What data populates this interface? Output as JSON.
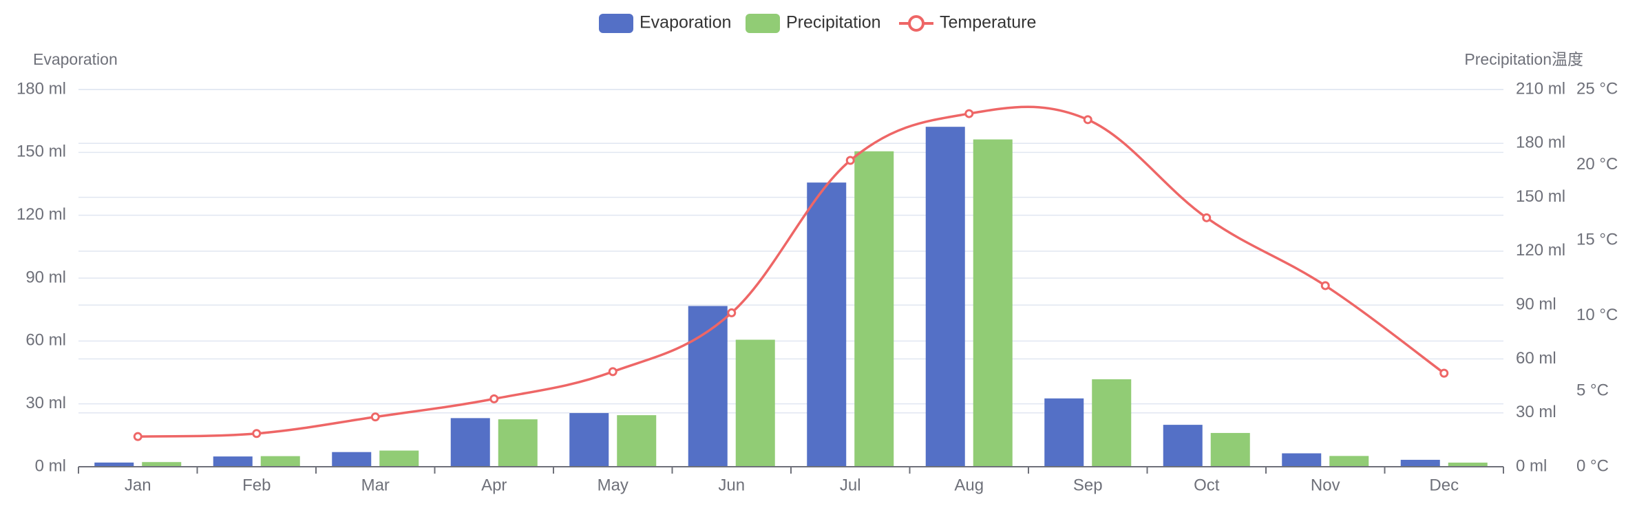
{
  "chart_data": {
    "type": "bar",
    "categories": [
      "Jan",
      "Feb",
      "Mar",
      "Apr",
      "May",
      "Jun",
      "Jul",
      "Aug",
      "Sep",
      "Oct",
      "Nov",
      "Dec"
    ],
    "series": [
      {
        "name": "Evaporation",
        "type": "bar",
        "axis": "left",
        "color": "#5470c6",
        "values": [
          2.0,
          4.9,
          7.0,
          23.2,
          25.6,
          76.7,
          135.6,
          162.2,
          32.6,
          20.0,
          6.4,
          3.3
        ]
      },
      {
        "name": "Precipitation",
        "type": "bar",
        "axis": "right-ml",
        "color": "#91cc75",
        "values": [
          2.6,
          5.9,
          9.0,
          26.4,
          28.7,
          70.7,
          175.6,
          182.2,
          48.7,
          18.8,
          6.0,
          2.3
        ]
      },
      {
        "name": "Temperature",
        "type": "line",
        "axis": "right-temp",
        "color": "#ee6666",
        "values": [
          2.0,
          2.2,
          3.3,
          4.5,
          6.3,
          10.2,
          20.3,
          23.4,
          23.0,
          16.5,
          12.0,
          6.2
        ]
      }
    ],
    "axes": {
      "left": {
        "name": "Evaporation",
        "min": 0,
        "max": 180,
        "ticks": [
          "0 ml",
          "30 ml",
          "60 ml",
          "90 ml",
          "120 ml",
          "150 ml",
          "180 ml"
        ]
      },
      "right_ml": {
        "name": "Precipitation",
        "min": 0,
        "max": 210,
        "ticks": [
          "0 ml",
          "30 ml",
          "60 ml",
          "90 ml",
          "120 ml",
          "150 ml",
          "180 ml",
          "210 ml"
        ]
      },
      "right_temp": {
        "name": "温度",
        "min": 0,
        "max": 25,
        "ticks": [
          "0 °C",
          "5 °C",
          "10 °C",
          "15 °C",
          "20 °C",
          "25 °C"
        ]
      }
    },
    "legend": {
      "position": "top-center",
      "items": [
        "Evaporation",
        "Precipitation",
        "Temperature"
      ]
    },
    "grid": true
  }
}
